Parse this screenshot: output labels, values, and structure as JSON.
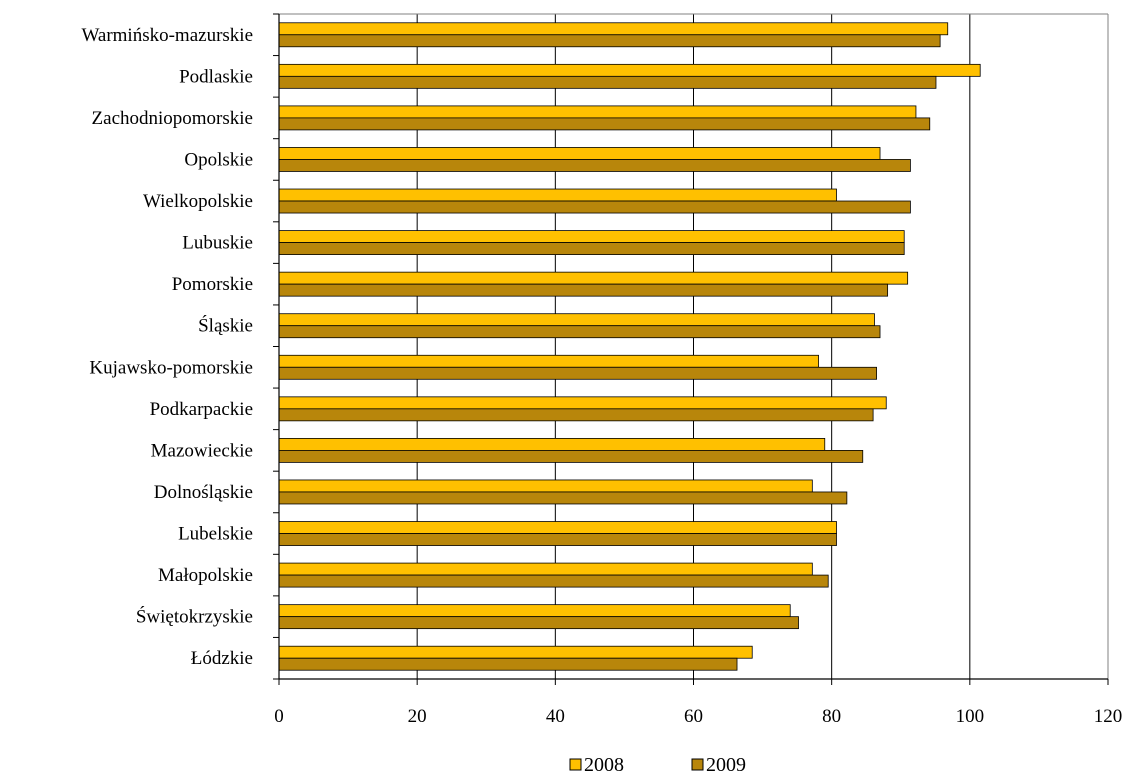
{
  "chart_data": {
    "type": "bar",
    "orientation": "horizontal",
    "categories": [
      "Warmińsko-mazurskie",
      "Podlaskie",
      "Zachodniopomorskie",
      "Opolskie",
      "Wielkopolskie",
      "Lubuskie",
      "Pomorskie",
      "Śląskie",
      "Kujawsko-pomorskie",
      "Podkarpackie",
      "Mazowieckie",
      "Dolnośląskie",
      "Lubelskie",
      "Małopolskie",
      "Świętokrzyskie",
      "Łódzkie"
    ],
    "series": [
      {
        "name": "2008",
        "color": "#FFC000",
        "values": [
          96.8,
          101.5,
          92.2,
          87.0,
          80.7,
          90.5,
          91.0,
          86.2,
          78.1,
          87.9,
          79.0,
          77.2,
          80.7,
          77.2,
          74.0,
          68.5
        ]
      },
      {
        "name": "2009",
        "color": "#B8860B",
        "values": [
          95.7,
          95.1,
          94.2,
          91.4,
          91.4,
          90.5,
          88.1,
          87.0,
          86.5,
          86.0,
          84.5,
          82.2,
          80.7,
          79.5,
          75.2,
          66.3
        ]
      }
    ],
    "xlim": [
      0,
      120
    ],
    "xticks": [
      "0",
      "20",
      "40",
      "60",
      "80",
      "100",
      "120"
    ],
    "grid": "vertical major gridlines",
    "legend_position": "bottom",
    "title": "",
    "xlabel": "",
    "ylabel": ""
  }
}
